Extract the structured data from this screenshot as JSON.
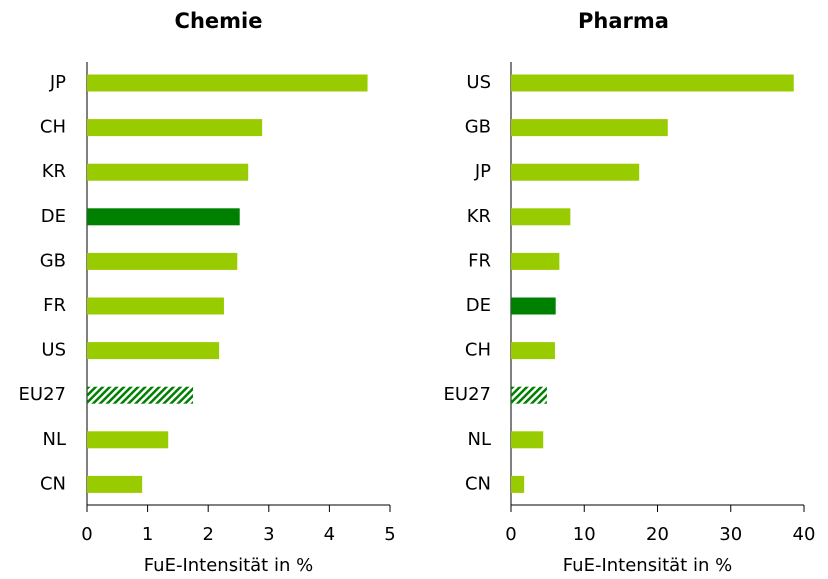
{
  "chart_data": [
    {
      "type": "bar",
      "orientation": "horizontal",
      "title": "Chemie",
      "x_label": "FuE-Intensität in %",
      "categories": [
        "JP",
        "CH",
        "KR",
        "DE",
        "GB",
        "FR",
        "US",
        "EU27",
        "NL",
        "CN"
      ],
      "values": [
        4.63,
        2.89,
        2.66,
        2.52,
        2.48,
        2.26,
        2.18,
        1.75,
        1.34,
        0.91
      ],
      "colors": [
        "#99cc00",
        "#99cc00",
        "#99cc00",
        "#008000",
        "#99cc00",
        "#99cc00",
        "#99cc00",
        "#008000",
        "#99cc00",
        "#99cc00"
      ],
      "patterns": [
        "solid",
        "solid",
        "solid",
        "solid",
        "solid",
        "solid",
        "solid",
        "hatch",
        "solid",
        "solid"
      ],
      "xlim": [
        0,
        5
      ],
      "xticks": [
        0,
        1,
        2,
        3,
        4,
        5
      ],
      "grid": false
    },
    {
      "type": "bar",
      "orientation": "horizontal",
      "title": "Pharma",
      "x_label": "FuE-Intensität in %",
      "categories": [
        "US",
        "GB",
        "JP",
        "KR",
        "FR",
        "DE",
        "CH",
        "EU27",
        "NL",
        "CN"
      ],
      "values": [
        38.6,
        21.4,
        17.5,
        8.1,
        6.6,
        6.1,
        6.0,
        4.9,
        4.4,
        1.8
      ],
      "colors": [
        "#99cc00",
        "#99cc00",
        "#99cc00",
        "#99cc00",
        "#99cc00",
        "#008000",
        "#99cc00",
        "#008000",
        "#99cc00",
        "#99cc00"
      ],
      "patterns": [
        "solid",
        "solid",
        "solid",
        "solid",
        "solid",
        "solid",
        "solid",
        "hatch",
        "solid",
        "solid"
      ],
      "xlim": [
        0,
        40
      ],
      "xticks": [
        0,
        10,
        20,
        30,
        40
      ],
      "grid": false
    }
  ]
}
